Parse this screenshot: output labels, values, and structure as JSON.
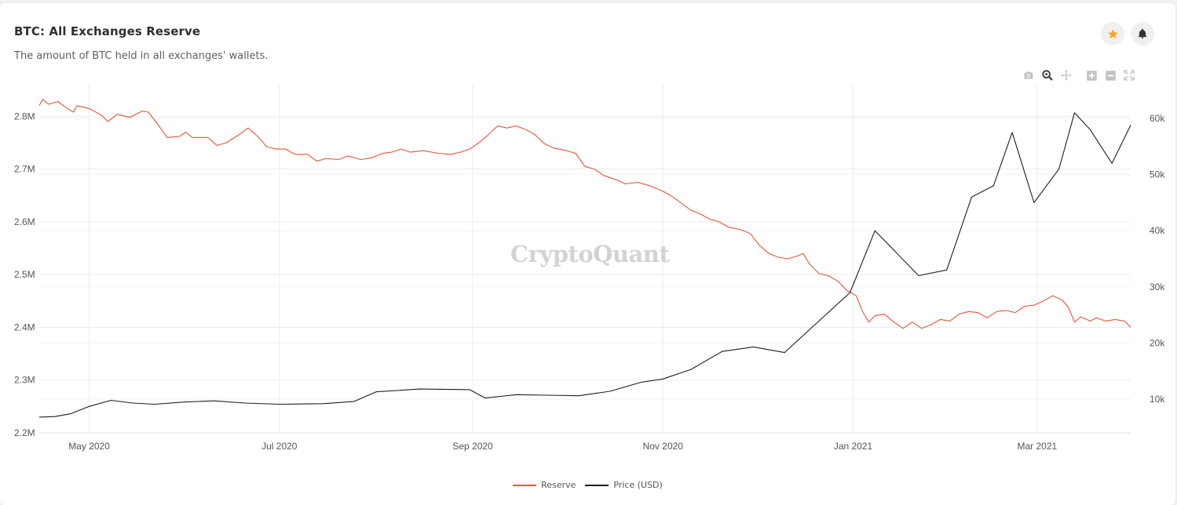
{
  "header": {
    "title": "BTC: All Exchanges Reserve",
    "subtitle": "The amount of BTC held in all exchanges' wallets."
  },
  "watermark": "CryptoQuant",
  "toolbar": {
    "icons": [
      "camera-icon",
      "zoom-icon",
      "pan-icon",
      "zoom-in-icon",
      "zoom-out-icon",
      "autoscale-icon"
    ]
  },
  "colors": {
    "reserve": "#e4553b",
    "price": "#1e1e1e",
    "star": "#f5a623",
    "grid": "#ececec"
  },
  "chart_data": {
    "type": "line",
    "x_axis": {
      "range": [
        "2020-04-15",
        "2021-03-31"
      ],
      "ticks": [
        {
          "date": "2020-05-01",
          "label": "May 2020"
        },
        {
          "date": "2020-07-01",
          "label": "Jul 2020"
        },
        {
          "date": "2020-09-01",
          "label": "Sep 2020"
        },
        {
          "date": "2020-11-01",
          "label": "Nov 2020"
        },
        {
          "date": "2021-01-01",
          "label": "Jan 2021"
        },
        {
          "date": "2021-03-01",
          "label": "Mar 2021"
        }
      ]
    },
    "y_left": {
      "range": [
        2200000,
        2860000
      ],
      "ticks": [
        {
          "value": 2200000,
          "label": "2.2M"
        },
        {
          "value": 2300000,
          "label": "2.3M"
        },
        {
          "value": 2400000,
          "label": "2.4M"
        },
        {
          "value": 2500000,
          "label": "2.5M"
        },
        {
          "value": 2600000,
          "label": "2.6M"
        },
        {
          "value": 2700000,
          "label": "2.7M"
        },
        {
          "value": 2800000,
          "label": "2.8M"
        }
      ]
    },
    "y_right": {
      "range": [
        4000,
        66000
      ],
      "ticks": [
        {
          "value": 10000,
          "label": "10k"
        },
        {
          "value": 20000,
          "label": "20k"
        },
        {
          "value": 30000,
          "label": "30k"
        },
        {
          "value": 40000,
          "label": "40k"
        },
        {
          "value": 50000,
          "label": "50k"
        },
        {
          "value": 60000,
          "label": "60k"
        }
      ]
    },
    "grid": true,
    "legend_position": "bottom-center",
    "series": [
      {
        "name": "Reserve",
        "axis": "left",
        "points": [
          [
            "2020-04-15",
            2820000
          ],
          [
            "2020-04-16",
            2832000
          ],
          [
            "2020-04-18",
            2823000
          ],
          [
            "2020-04-21",
            2828000
          ],
          [
            "2020-04-24",
            2815000
          ],
          [
            "2020-04-26",
            2808000
          ],
          [
            "2020-04-27",
            2820000
          ],
          [
            "2020-05-01",
            2815000
          ],
          [
            "2020-05-05",
            2802000
          ],
          [
            "2020-05-07",
            2790000
          ],
          [
            "2020-05-10",
            2804000
          ],
          [
            "2020-05-14",
            2798000
          ],
          [
            "2020-05-18",
            2810000
          ],
          [
            "2020-05-20",
            2808000
          ],
          [
            "2020-05-23",
            2785000
          ],
          [
            "2020-05-26",
            2760000
          ],
          [
            "2020-05-30",
            2762000
          ],
          [
            "2020-06-01",
            2770000
          ],
          [
            "2020-06-03",
            2760000
          ],
          [
            "2020-06-08",
            2760000
          ],
          [
            "2020-06-11",
            2745000
          ],
          [
            "2020-06-14",
            2750000
          ],
          [
            "2020-06-18",
            2765000
          ],
          [
            "2020-06-21",
            2778000
          ],
          [
            "2020-06-24",
            2762000
          ],
          [
            "2020-06-27",
            2742000
          ],
          [
            "2020-06-30",
            2738000
          ],
          [
            "2020-07-03",
            2738000
          ],
          [
            "2020-07-06",
            2728000
          ],
          [
            "2020-07-10",
            2728000
          ],
          [
            "2020-07-13",
            2715000
          ],
          [
            "2020-07-16",
            2720000
          ],
          [
            "2020-07-20",
            2718000
          ],
          [
            "2020-07-23",
            2725000
          ],
          [
            "2020-07-27",
            2718000
          ],
          [
            "2020-07-31",
            2722000
          ],
          [
            "2020-08-03",
            2730000
          ],
          [
            "2020-08-06",
            2732000
          ],
          [
            "2020-08-09",
            2738000
          ],
          [
            "2020-08-12",
            2732000
          ],
          [
            "2020-08-16",
            2735000
          ],
          [
            "2020-08-21",
            2730000
          ],
          [
            "2020-08-25",
            2728000
          ],
          [
            "2020-08-28",
            2732000
          ],
          [
            "2020-08-31",
            2738000
          ],
          [
            "2020-09-03",
            2750000
          ],
          [
            "2020-09-06",
            2765000
          ],
          [
            "2020-09-09",
            2782000
          ],
          [
            "2020-09-12",
            2778000
          ],
          [
            "2020-09-15",
            2782000
          ],
          [
            "2020-09-18",
            2775000
          ],
          [
            "2020-09-21",
            2765000
          ],
          [
            "2020-09-24",
            2748000
          ],
          [
            "2020-09-27",
            2740000
          ],
          [
            "2020-10-01",
            2735000
          ],
          [
            "2020-10-04",
            2730000
          ],
          [
            "2020-10-07",
            2705000
          ],
          [
            "2020-10-10",
            2700000
          ],
          [
            "2020-10-13",
            2688000
          ],
          [
            "2020-10-17",
            2680000
          ],
          [
            "2020-10-20",
            2672000
          ],
          [
            "2020-10-24",
            2675000
          ],
          [
            "2020-10-28",
            2668000
          ],
          [
            "2020-11-01",
            2658000
          ],
          [
            "2020-11-04",
            2648000
          ],
          [
            "2020-11-07",
            2635000
          ],
          [
            "2020-11-10",
            2622000
          ],
          [
            "2020-11-13",
            2615000
          ],
          [
            "2020-11-16",
            2605000
          ],
          [
            "2020-11-19",
            2600000
          ],
          [
            "2020-11-22",
            2590000
          ],
          [
            "2020-11-26",
            2585000
          ],
          [
            "2020-11-29",
            2578000
          ],
          [
            "2020-12-02",
            2555000
          ],
          [
            "2020-12-05",
            2540000
          ],
          [
            "2020-12-08",
            2533000
          ],
          [
            "2020-12-11",
            2530000
          ],
          [
            "2020-12-14",
            2535000
          ],
          [
            "2020-12-16",
            2540000
          ],
          [
            "2020-12-18",
            2520000
          ],
          [
            "2020-12-21",
            2502000
          ],
          [
            "2020-12-24",
            2498000
          ],
          [
            "2020-12-27",
            2488000
          ],
          [
            "2020-12-30",
            2470000
          ],
          [
            "2021-01-02",
            2460000
          ],
          [
            "2021-01-04",
            2430000
          ],
          [
            "2021-01-06",
            2410000
          ],
          [
            "2021-01-08",
            2422000
          ],
          [
            "2021-01-11",
            2425000
          ],
          [
            "2021-01-14",
            2410000
          ],
          [
            "2021-01-17",
            2398000
          ],
          [
            "2021-01-20",
            2410000
          ],
          [
            "2021-01-23",
            2398000
          ],
          [
            "2021-01-26",
            2405000
          ],
          [
            "2021-01-29",
            2415000
          ],
          [
            "2021-02-01",
            2412000
          ],
          [
            "2021-02-04",
            2425000
          ],
          [
            "2021-02-07",
            2430000
          ],
          [
            "2021-02-10",
            2428000
          ],
          [
            "2021-02-13",
            2418000
          ],
          [
            "2021-02-16",
            2430000
          ],
          [
            "2021-02-19",
            2432000
          ],
          [
            "2021-02-22",
            2428000
          ],
          [
            "2021-02-25",
            2440000
          ],
          [
            "2021-02-28",
            2442000
          ],
          [
            "2021-03-03",
            2450000
          ],
          [
            "2021-03-06",
            2460000
          ],
          [
            "2021-03-09",
            2452000
          ],
          [
            "2021-03-11",
            2438000
          ],
          [
            "2021-03-13",
            2410000
          ],
          [
            "2021-03-15",
            2420000
          ],
          [
            "2021-03-18",
            2412000
          ],
          [
            "2021-03-20",
            2418000
          ],
          [
            "2021-03-23",
            2412000
          ],
          [
            "2021-03-26",
            2415000
          ],
          [
            "2021-03-29",
            2412000
          ],
          [
            "2021-03-31",
            2400000
          ]
        ]
      },
      {
        "name": "Price (USD)",
        "axis": "right",
        "points": [
          [
            "2020-04-15",
            6800
          ],
          [
            "2020-04-20",
            6900
          ],
          [
            "2020-04-25",
            7400
          ],
          [
            "2020-05-01",
            8700
          ],
          [
            "2020-05-08",
            9800
          ],
          [
            "2020-05-15",
            9300
          ],
          [
            "2020-05-22",
            9100
          ],
          [
            "2020-06-01",
            9500
          ],
          [
            "2020-06-10",
            9700
          ],
          [
            "2020-06-20",
            9300
          ],
          [
            "2020-07-01",
            9100
          ],
          [
            "2020-07-15",
            9200
          ],
          [
            "2020-07-25",
            9600
          ],
          [
            "2020-08-01",
            11300
          ],
          [
            "2020-08-15",
            11800
          ],
          [
            "2020-08-31",
            11700
          ],
          [
            "2020-09-05",
            10200
          ],
          [
            "2020-09-15",
            10800
          ],
          [
            "2020-09-25",
            10700
          ],
          [
            "2020-10-05",
            10600
          ],
          [
            "2020-10-15",
            11400
          ],
          [
            "2020-10-25",
            13000
          ],
          [
            "2020-11-01",
            13600
          ],
          [
            "2020-11-10",
            15300
          ],
          [
            "2020-11-20",
            18500
          ],
          [
            "2020-11-30",
            19300
          ],
          [
            "2020-12-10",
            18300
          ],
          [
            "2020-12-20",
            23400
          ],
          [
            "2020-12-31",
            29000
          ],
          [
            "2021-01-08",
            40000
          ],
          [
            "2021-01-15",
            36000
          ],
          [
            "2021-01-22",
            32000
          ],
          [
            "2021-01-31",
            33000
          ],
          [
            "2021-02-08",
            46000
          ],
          [
            "2021-02-15",
            48000
          ],
          [
            "2021-02-21",
            57500
          ],
          [
            "2021-02-28",
            45000
          ],
          [
            "2021-03-08",
            51000
          ],
          [
            "2021-03-13",
            61000
          ],
          [
            "2021-03-18",
            58000
          ],
          [
            "2021-03-25",
            52000
          ],
          [
            "2021-03-31",
            58800
          ]
        ]
      }
    ]
  },
  "legend": [
    {
      "name": "Reserve",
      "color": "#e4553b"
    },
    {
      "name": "Price (USD)",
      "color": "#1e1e1e"
    }
  ]
}
